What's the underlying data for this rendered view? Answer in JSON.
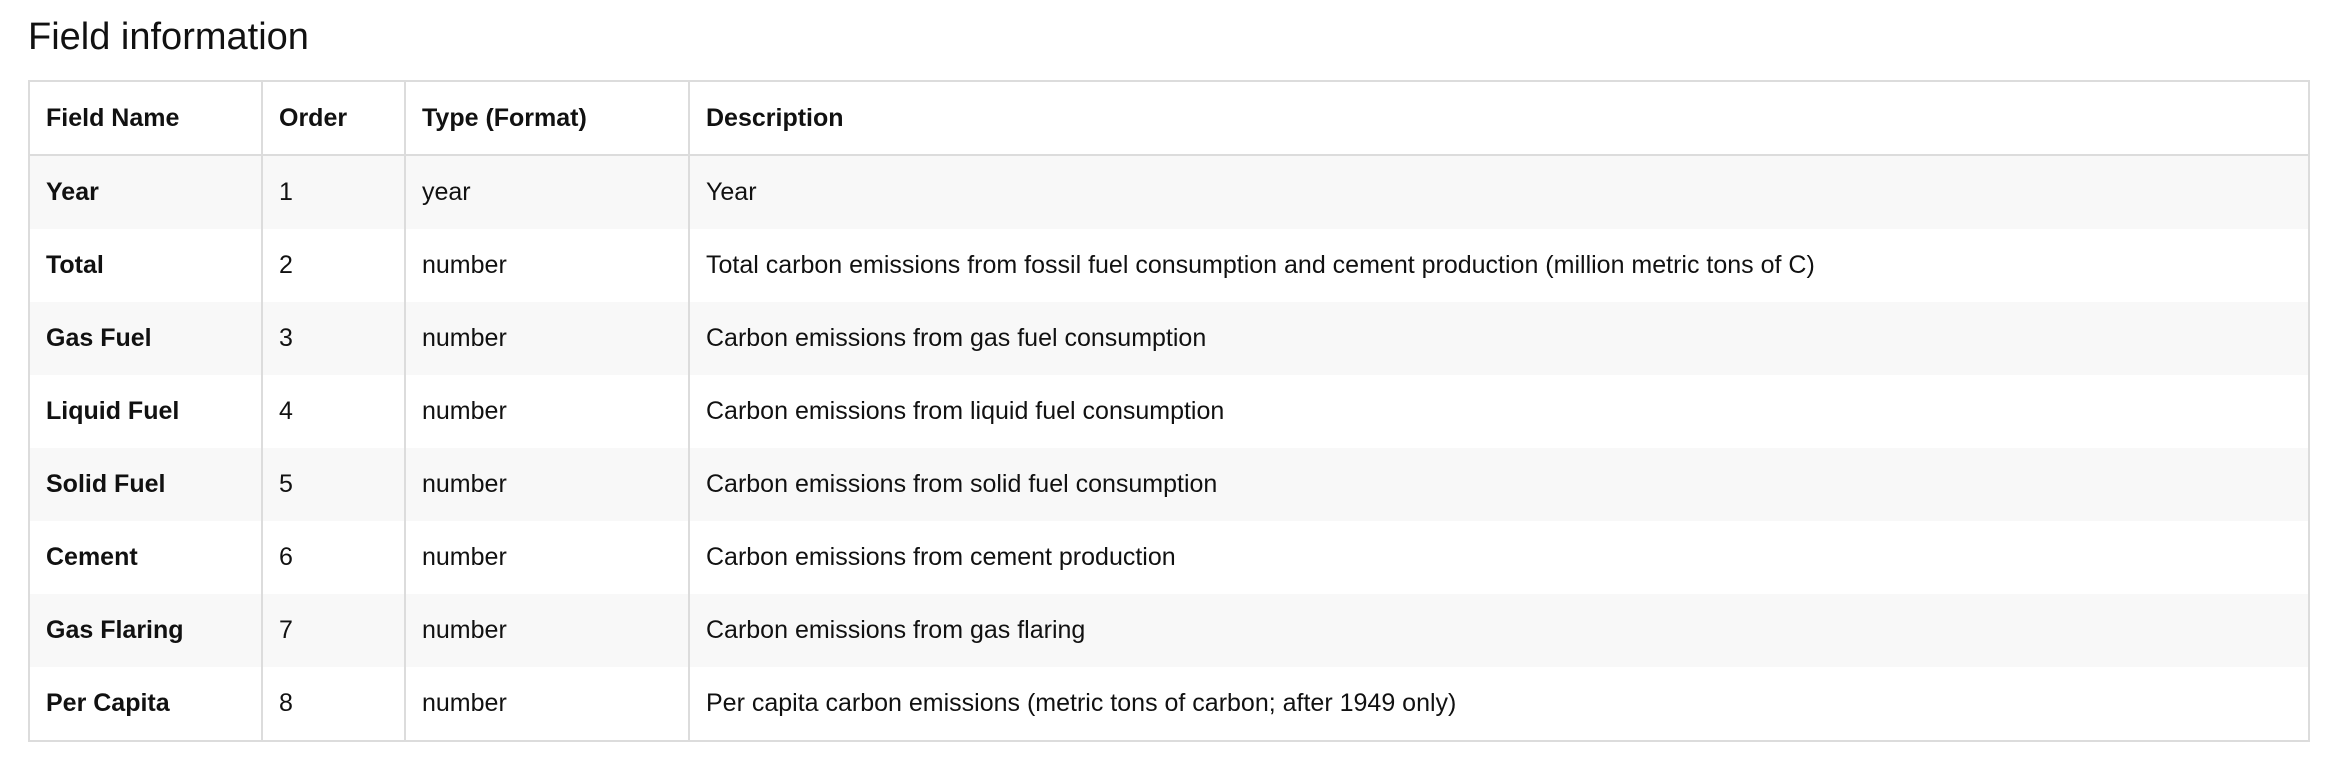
{
  "section": {
    "title": "Field information"
  },
  "table": {
    "headers": [
      "Field Name",
      "Order",
      "Type (Format)",
      "Description"
    ],
    "rows": [
      {
        "name": "Year",
        "order": "1",
        "type": "year",
        "description": "Year"
      },
      {
        "name": "Total",
        "order": "2",
        "type": "number",
        "description": "Total carbon emissions from fossil fuel consumption and cement production (million metric tons of C)"
      },
      {
        "name": "Gas Fuel",
        "order": "3",
        "type": "number",
        "description": "Carbon emissions from gas fuel consumption"
      },
      {
        "name": "Liquid Fuel",
        "order": "4",
        "type": "number",
        "description": "Carbon emissions from liquid fuel consumption"
      },
      {
        "name": "Solid Fuel",
        "order": "5",
        "type": "number",
        "description": "Carbon emissions from solid fuel consumption"
      },
      {
        "name": "Cement",
        "order": "6",
        "type": "number",
        "description": "Carbon emissions from cement production"
      },
      {
        "name": "Gas Flaring",
        "order": "7",
        "type": "number",
        "description": "Carbon emissions from gas flaring"
      },
      {
        "name": "Per Capita",
        "order": "8",
        "type": "number",
        "description": "Per capita carbon emissions (metric tons of carbon; after 1949 only)"
      }
    ]
  },
  "colors": {
    "border": "#dcdcdc",
    "stripe": "#f8f8f8",
    "text": "#111111"
  }
}
